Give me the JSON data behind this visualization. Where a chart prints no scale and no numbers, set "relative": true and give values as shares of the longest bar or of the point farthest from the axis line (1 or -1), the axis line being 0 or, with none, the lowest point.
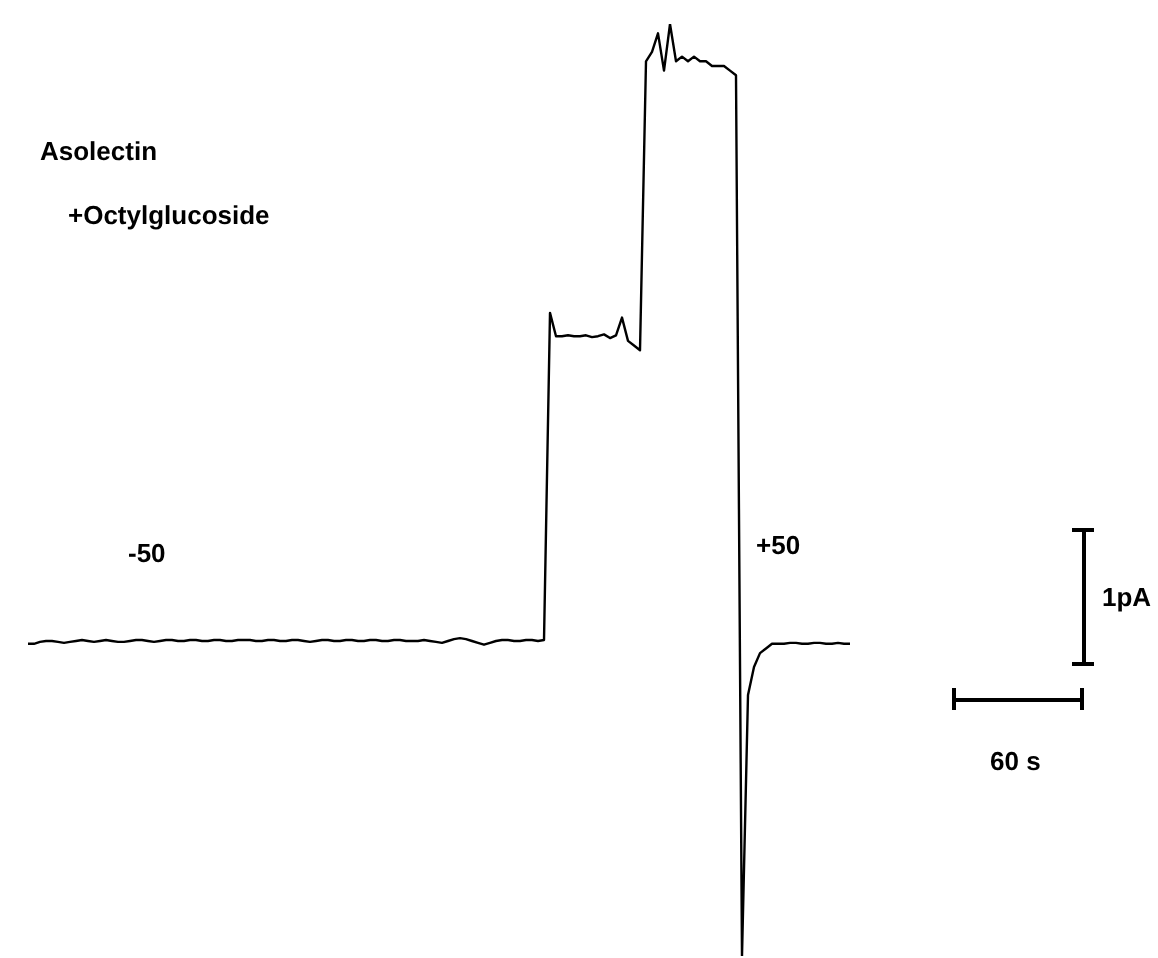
{
  "chart_data": {
    "type": "line",
    "relative": true,
    "legend": false,
    "marker": "none",
    "line_style": "solid",
    "categories": [
      null,
      null,
      null,
      null,
      null,
      null,
      null,
      null,
      null,
      null,
      null,
      null,
      null,
      null,
      null,
      null,
      null,
      null,
      null,
      null,
      null,
      null,
      null,
      null,
      null,
      null,
      null,
      null,
      null,
      null,
      null,
      null,
      null,
      null,
      null,
      null,
      null,
      null,
      null,
      null,
      null,
      null,
      null,
      null,
      null,
      null,
      null,
      null,
      null,
      null,
      null,
      null,
      null,
      null,
      null,
      null,
      null,
      null,
      null,
      null,
      null,
      null,
      null,
      null,
      null,
      null,
      null,
      null,
      null,
      null,
      null,
      null,
      null,
      null,
      null,
      null,
      null,
      null,
      null,
      null,
      null,
      null,
      null,
      null,
      null,
      null,
      null,
      null,
      null,
      null,
      null,
      null,
      null,
      null,
      null,
      null,
      null,
      null,
      null,
      null,
      null,
      null,
      null,
      null,
      null,
      null,
      null,
      null,
      null,
      null,
      null,
      null,
      null,
      null,
      null,
      null,
      null,
      null,
      null,
      null,
      null,
      null,
      null,
      null,
      null,
      null,
      null,
      null,
      null,
      null,
      null,
      null,
      null,
      null,
      null,
      null,
      null,
      null
    ],
    "series": [
      {
        "color": "#000000",
        "values": [
          0.335,
          0.335,
          0.337,
          0.338,
          0.338,
          0.337,
          0.336,
          0.337,
          0.338,
          0.339,
          0.338,
          0.337,
          0.338,
          0.339,
          0.338,
          0.337,
          0.337,
          0.338,
          0.339,
          0.339,
          0.338,
          0.337,
          0.338,
          0.339,
          0.339,
          0.338,
          0.338,
          0.339,
          0.339,
          0.338,
          0.338,
          0.339,
          0.339,
          0.338,
          0.338,
          0.339,
          0.339,
          0.339,
          0.338,
          0.338,
          0.339,
          0.339,
          0.338,
          0.338,
          0.339,
          0.339,
          0.338,
          0.337,
          0.338,
          0.339,
          0.339,
          0.338,
          0.338,
          0.339,
          0.339,
          0.338,
          0.338,
          0.339,
          0.339,
          0.338,
          0.338,
          0.339,
          0.339,
          0.338,
          0.338,
          0.338,
          0.339,
          0.338,
          0.337,
          0.336,
          0.338,
          0.34,
          0.341,
          0.34,
          0.338,
          0.336,
          0.334,
          0.336,
          0.338,
          0.339,
          0.339,
          0.338,
          0.338,
          0.339,
          0.339,
          0.338,
          0.339,
          0.69,
          0.665,
          0.665,
          0.666,
          0.665,
          0.665,
          0.666,
          0.664,
          0.665,
          0.667,
          0.663,
          0.666,
          0.685,
          0.66,
          0.655,
          0.65,
          0.96,
          0.97,
          0.99,
          0.95,
          1.0,
          0.96,
          0.965,
          0.96,
          0.965,
          0.96,
          0.96,
          0.955,
          0.955,
          0.955,
          0.95,
          0.945,
          0,
          0.28,
          0.31,
          0.325,
          0.33,
          0.335,
          0.335,
          0.335,
          0.336,
          0.336,
          0.335,
          0.335,
          0.336,
          0.336,
          0.335,
          0.335,
          0.336,
          0.335,
          0.335
        ]
      }
    ],
    "annotations": [
      "Asolectin",
      "+Octylglucoside",
      "-50",
      "+50",
      "1pA",
      "60 s"
    ]
  }
}
